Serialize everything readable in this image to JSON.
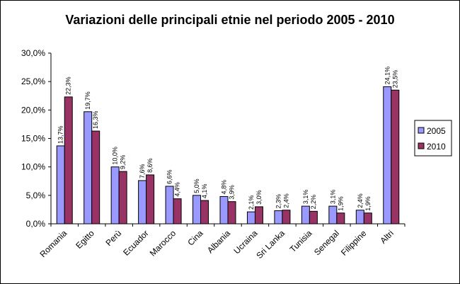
{
  "chart_data": {
    "type": "bar",
    "title": "Variazioni delle principali etnie nel periodo 2005 - 2010",
    "xlabel": "",
    "ylabel": "",
    "ylim": [
      0,
      30
    ],
    "y_ticks": [
      "0,0%",
      "5,0%",
      "10,0%",
      "15,0%",
      "20,0%",
      "25,0%",
      "30,0%"
    ],
    "categories": [
      "Romania",
      "Egitto",
      "Perù",
      "Ecuador",
      "Marocco",
      "Cina",
      "Albania",
      "Ucraina",
      "Sri Lanka",
      "Tunisia",
      "Senegal",
      "Filippine",
      "Altri"
    ],
    "series": [
      {
        "name": "2005",
        "color": "#9999ff",
        "values": [
          13.7,
          19.7,
          10.0,
          7.6,
          6.6,
          5.0,
          4.8,
          2.1,
          2.3,
          3.1,
          3.1,
          2.4,
          24.1
        ],
        "labels": [
          "13,7%",
          "19,7%",
          "10,0%",
          "7,6%",
          "6,6%",
          "5,0%",
          "4,8%",
          "2,1%",
          "2,3%",
          "3,1%",
          "3,1%",
          "2,4%",
          "24,1%"
        ]
      },
      {
        "name": "2010",
        "color": "#993366",
        "values": [
          22.3,
          16.3,
          9.2,
          8.6,
          4.4,
          4.1,
          3.9,
          3.0,
          2.4,
          2.2,
          1.9,
          1.9,
          23.5
        ],
        "labels": [
          "22,3%",
          "16,3%",
          "9,2%",
          "8,6%",
          "4,4%",
          "4,1%",
          "3,9%",
          "3,0%",
          "2,4%",
          "2,2%",
          "1,9%",
          "1,9%",
          "23,5%"
        ]
      }
    ],
    "legend": "right",
    "grid": false
  }
}
